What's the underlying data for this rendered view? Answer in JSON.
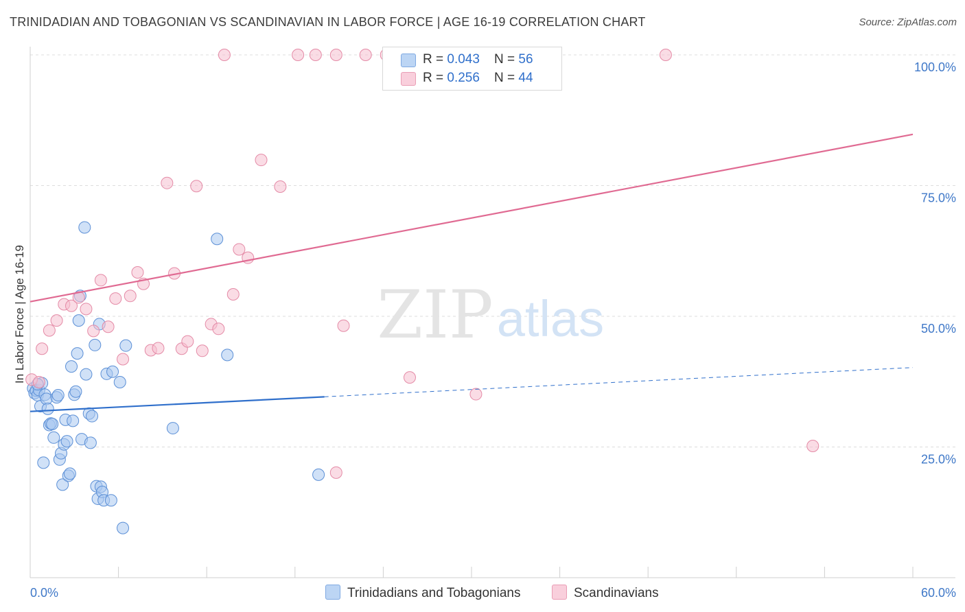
{
  "title": "TRINIDADIAN AND TOBAGONIAN VS SCANDINAVIAN IN LABOR FORCE | AGE 16-19 CORRELATION CHART",
  "source": "Source: ZipAtlas.com",
  "watermark": {
    "zip": "ZIP",
    "atlas": "atlas"
  },
  "colors": {
    "blue_fill": "#a9c8f0",
    "blue_stroke": "#5b8fd6",
    "blue_line": "#2f6fcb",
    "pink_fill": "#f6bfd0",
    "pink_stroke": "#e48aa6",
    "pink_line": "#e06a92",
    "axis_text": "#3f78c8",
    "grid": "#dcdcdc"
  },
  "legend_stats": [
    {
      "r_label": "R = ",
      "r_value": "0.043",
      "n_label": "N = ",
      "n_value": "56"
    },
    {
      "r_label": "R = ",
      "r_value": "0.256",
      "n_label": "N = ",
      "n_value": "44"
    }
  ],
  "bottom_legend": [
    "Trinidadians and Tobagonians",
    "Scandinavians"
  ],
  "chart_data": {
    "type": "scatter",
    "title": "TRINIDADIAN AND TOBAGONIAN VS SCANDINAVIAN IN LABOR FORCE | AGE 16-19 CORRELATION CHART",
    "xlabel": "",
    "ylabel": "In Labor Force | Age 16-19",
    "xlim": [
      0,
      60
    ],
    "ylim": [
      0,
      100
    ],
    "x_tick_labels": [
      "0.0%",
      "60.0%"
    ],
    "y_ticks": [
      25,
      50,
      75,
      100
    ],
    "y_tick_labels": [
      "25.0%",
      "50.0%",
      "75.0%",
      "100.0%"
    ],
    "series": [
      {
        "name": "Trinidadians and Tobagonians",
        "r": 0.043,
        "n": 56,
        "trend": {
          "x0": 0,
          "y0": 31.8,
          "x1": 20,
          "y1": 34.6,
          "dashed_to_x": 60,
          "dashed_to_y": 40.2
        },
        "points": [
          [
            0.2,
            36.2
          ],
          [
            0.3,
            35.3
          ],
          [
            0.4,
            35.8
          ],
          [
            0.5,
            34.9
          ],
          [
            0.6,
            35.9
          ],
          [
            0.7,
            32.8
          ],
          [
            0.8,
            37.2
          ],
          [
            0.9,
            22.0
          ],
          [
            1.0,
            35.0
          ],
          [
            1.1,
            34.2
          ],
          [
            1.2,
            32.3
          ],
          [
            1.3,
            29.2
          ],
          [
            1.4,
            29.5
          ],
          [
            1.5,
            29.4
          ],
          [
            1.6,
            26.8
          ],
          [
            1.8,
            34.5
          ],
          [
            1.9,
            34.9
          ],
          [
            2.0,
            22.6
          ],
          [
            2.1,
            23.8
          ],
          [
            2.2,
            17.8
          ],
          [
            2.3,
            25.5
          ],
          [
            2.4,
            30.2
          ],
          [
            2.5,
            26.1
          ],
          [
            2.6,
            19.5
          ],
          [
            2.7,
            19.9
          ],
          [
            2.8,
            40.4
          ],
          [
            2.9,
            30.0
          ],
          [
            3.0,
            35.0
          ],
          [
            3.1,
            35.6
          ],
          [
            3.2,
            42.9
          ],
          [
            3.3,
            49.2
          ],
          [
            3.4,
            53.9
          ],
          [
            3.5,
            26.5
          ],
          [
            3.7,
            67.0
          ],
          [
            3.8,
            38.9
          ],
          [
            4.0,
            31.4
          ],
          [
            4.1,
            25.8
          ],
          [
            4.2,
            30.9
          ],
          [
            4.4,
            44.5
          ],
          [
            4.5,
            17.5
          ],
          [
            4.6,
            15.1
          ],
          [
            4.7,
            48.5
          ],
          [
            4.8,
            17.4
          ],
          [
            4.9,
            16.4
          ],
          [
            5.0,
            14.8
          ],
          [
            5.2,
            39.0
          ],
          [
            5.5,
            14.8
          ],
          [
            5.6,
            39.4
          ],
          [
            6.1,
            37.4
          ],
          [
            6.3,
            9.5
          ],
          [
            6.5,
            44.4
          ],
          [
            9.7,
            28.6
          ],
          [
            12.7,
            64.8
          ],
          [
            13.4,
            42.6
          ],
          [
            19.6,
            19.7
          ],
          [
            0.5,
            37.0
          ]
        ]
      },
      {
        "name": "Scandinavians",
        "r": 0.256,
        "n": 44,
        "trend": {
          "x0": 0,
          "y0": 52.8,
          "x1": 60,
          "y1": 84.8
        },
        "points": [
          [
            0.1,
            37.9
          ],
          [
            0.8,
            43.8
          ],
          [
            1.3,
            47.3
          ],
          [
            1.8,
            49.2
          ],
          [
            2.3,
            52.3
          ],
          [
            2.8,
            52.0
          ],
          [
            3.3,
            53.6
          ],
          [
            3.8,
            51.4
          ],
          [
            4.3,
            47.2
          ],
          [
            4.8,
            56.9
          ],
          [
            5.3,
            48.0
          ],
          [
            5.8,
            53.4
          ],
          [
            6.3,
            41.8
          ],
          [
            6.8,
            53.9
          ],
          [
            7.3,
            58.4
          ],
          [
            7.7,
            56.2
          ],
          [
            8.2,
            43.5
          ],
          [
            8.7,
            43.9
          ],
          [
            9.3,
            75.5
          ],
          [
            9.8,
            58.2
          ],
          [
            10.3,
            43.8
          ],
          [
            10.7,
            45.2
          ],
          [
            11.3,
            74.9
          ],
          [
            11.7,
            43.4
          ],
          [
            12.3,
            48.5
          ],
          [
            12.8,
            47.6
          ],
          [
            13.8,
            54.2
          ],
          [
            14.2,
            62.8
          ],
          [
            14.8,
            61.2
          ],
          [
            15.7,
            79.9
          ],
          [
            17.0,
            74.8
          ],
          [
            21.3,
            48.2
          ],
          [
            25.8,
            38.3
          ],
          [
            30.3,
            35.1
          ],
          [
            20.8,
            20.1
          ],
          [
            53.2,
            25.2
          ],
          [
            13.2,
            100.0
          ],
          [
            18.2,
            100.0
          ],
          [
            19.4,
            100.0
          ],
          [
            20.8,
            100.0
          ],
          [
            22.8,
            100.0
          ],
          [
            24.2,
            100.0
          ],
          [
            43.2,
            100.0
          ],
          [
            0.6,
            37.4
          ]
        ]
      }
    ]
  }
}
